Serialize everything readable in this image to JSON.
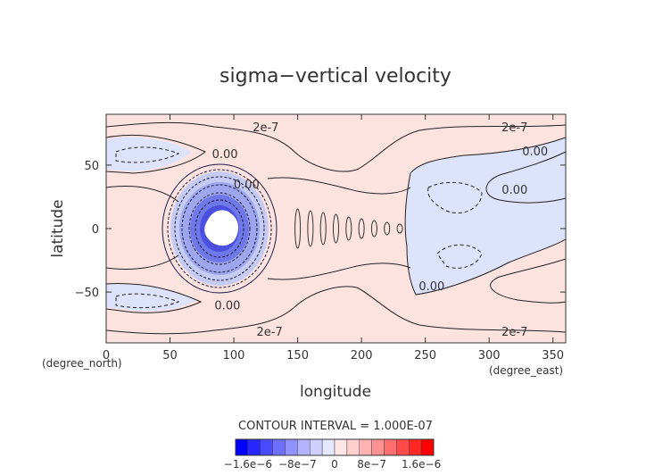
{
  "chart_data": {
    "type": "contour",
    "title": "sigma−vertical velocity",
    "xlabel": "longitude",
    "ylabel": "latitude",
    "x_unit_label": "(degree_east)",
    "y_unit_label": "(degree_north)",
    "xlim": [
      0,
      360
    ],
    "ylim": [
      -90,
      90
    ],
    "x_ticks": [
      0,
      50,
      100,
      150,
      200,
      250,
      300,
      350
    ],
    "y_ticks": [
      -50,
      0,
      50
    ],
    "contour_interval_text": "CONTOUR INTERVAL = 1.000E-07",
    "contour_labels": [
      {
        "text": "2e-7",
        "lon": 125,
        "lat": 80
      },
      {
        "text": "2e-7",
        "lon": 320,
        "lat": 80
      },
      {
        "text": "0.00",
        "lon": 93,
        "lat": 59
      },
      {
        "text": "0.00",
        "lon": 336,
        "lat": 61
      },
      {
        "text": "0.00",
        "lon": 320,
        "lat": 31
      },
      {
        "text": "0.00",
        "lon": 110,
        "lat": 35
      },
      {
        "text": "0.00",
        "lon": 255,
        "lat": -45
      },
      {
        "text": "0.00",
        "lon": 95,
        "lat": -60
      },
      {
        "text": "2e-7",
        "lon": 128,
        "lat": -81
      },
      {
        "text": "2e-7",
        "lon": 320,
        "lat": -81
      }
    ],
    "colorbar": {
      "min": -1.6e-06,
      "max": 1.6e-06,
      "tick_labels": [
        "−1.6e−6",
        "−8e−7",
        "0",
        "8e−7",
        "1.6e−6"
      ],
      "colors": [
        "#0000ff",
        "#2626ff",
        "#4a4aff",
        "#6f6fff",
        "#9292ff",
        "#b2b2ff",
        "#cfcfff",
        "#e6e6ff",
        "#ffe6e6",
        "#ffcfcf",
        "#ffb2b2",
        "#ff9292",
        "#ff6f6f",
        "#ff4a4a",
        "#ff2626",
        "#ff0000"
      ]
    },
    "background_color": "#fde3e0",
    "negative_color": "#dde3fb"
  }
}
